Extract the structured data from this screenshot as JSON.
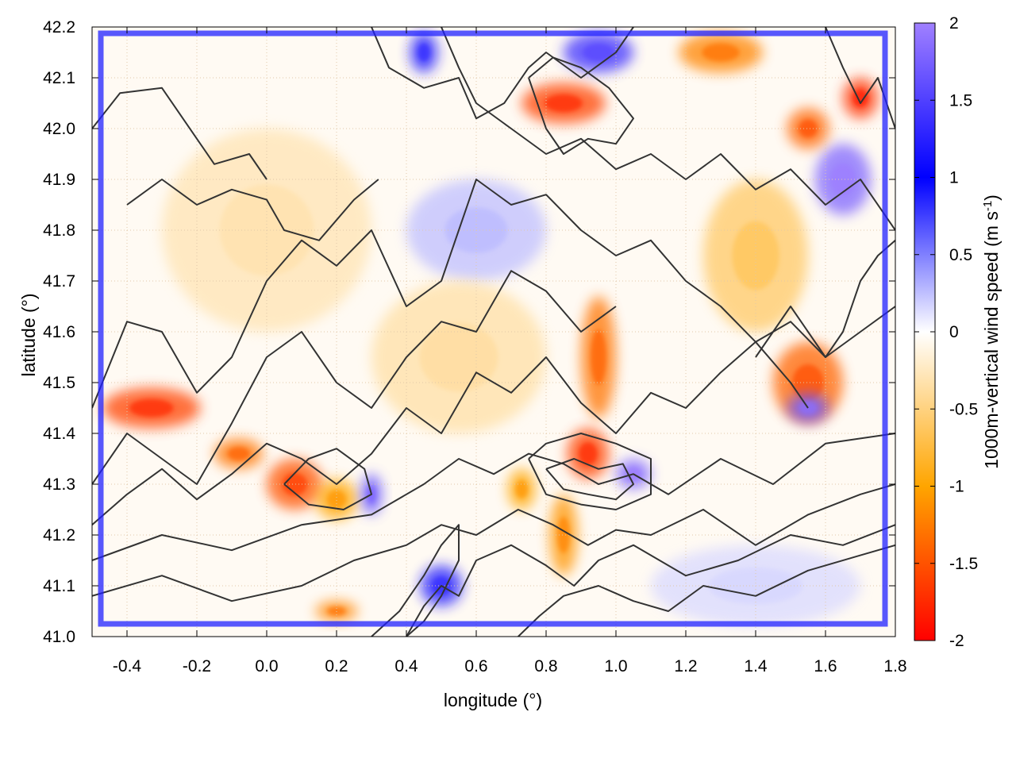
{
  "chart_data": {
    "type": "heatmap",
    "xlabel": "longitude (°)",
    "ylabel": "latitude (°)",
    "colorbar_label": "1000m-vertical wind speed (m s",
    "colorbar_label_sup": "-1",
    "colorbar_label_end": ")",
    "xlim": [
      -0.5,
      1.8
    ],
    "ylim": [
      41.0,
      42.2
    ],
    "clim": [
      -2,
      2
    ],
    "x_ticks": [
      -0.4,
      -0.2,
      0.0,
      0.2,
      0.4,
      0.6,
      0.8,
      1.0,
      1.2,
      1.4,
      1.6,
      1.8
    ],
    "x_tick_labels": [
      "-0.4",
      "-0.2",
      "0.0",
      "0.2",
      "0.4",
      "0.6",
      "0.8",
      "1.0",
      "1.2",
      "1.4",
      "1.6",
      "1.8"
    ],
    "y_ticks": [
      41.0,
      41.1,
      41.2,
      41.3,
      41.4,
      41.5,
      41.6,
      41.7,
      41.8,
      41.9,
      42.0,
      42.1,
      42.2
    ],
    "y_tick_labels": [
      "41.0",
      "41.1",
      "41.2",
      "41.3",
      "41.4",
      "41.5",
      "41.6",
      "41.7",
      "41.8",
      "41.9",
      "42.0",
      "42.1",
      "42.2"
    ],
    "c_ticks": [
      -2,
      -1.5,
      -1,
      -0.5,
      0,
      0.5,
      1,
      1.5,
      2
    ],
    "c_tick_labels": [
      "-2",
      "-1.5",
      "-1",
      "-0.5",
      "0",
      "0.5",
      "1",
      "1.5",
      "2"
    ],
    "colormap": [
      {
        "v": -2,
        "color": "#ff0000"
      },
      {
        "v": -1,
        "color": "#ffa500"
      },
      {
        "v": 0,
        "color": "#ffffff"
      },
      {
        "v": 1,
        "color": "#0000ff"
      },
      {
        "v": 2,
        "color": "#a080ff"
      }
    ],
    "grid": true,
    "features": [
      {
        "lon": -0.33,
        "lat": 41.45,
        "w": -1.6,
        "rx": 0.14,
        "ry": 0.04
      },
      {
        "lon": -0.08,
        "lat": 41.36,
        "w": -1.3,
        "rx": 0.07,
        "ry": 0.03
      },
      {
        "lon": 0.08,
        "lat": 41.3,
        "w": -1.5,
        "rx": 0.08,
        "ry": 0.05
      },
      {
        "lon": 0.2,
        "lat": 41.27,
        "w": -1.0,
        "rx": 0.06,
        "ry": 0.04
      },
      {
        "lon": 0.3,
        "lat": 41.28,
        "w": 1.6,
        "rx": 0.03,
        "ry": 0.04
      },
      {
        "lon": 0.95,
        "lat": 41.55,
        "w": -1.3,
        "rx": 0.05,
        "ry": 0.12
      },
      {
        "lon": 0.92,
        "lat": 41.36,
        "w": -1.6,
        "rx": 0.06,
        "ry": 0.05
      },
      {
        "lon": 1.05,
        "lat": 41.32,
        "w": 1.8,
        "rx": 0.05,
        "ry": 0.03
      },
      {
        "lon": 0.85,
        "lat": 41.2,
        "w": -1.1,
        "rx": 0.04,
        "ry": 0.08
      },
      {
        "lon": 0.73,
        "lat": 41.29,
        "w": -1.0,
        "rx": 0.04,
        "ry": 0.04
      },
      {
        "lon": 1.55,
        "lat": 41.5,
        "w": -1.4,
        "rx": 0.1,
        "ry": 0.08
      },
      {
        "lon": 1.55,
        "lat": 41.45,
        "w": 1.7,
        "rx": 0.06,
        "ry": 0.03
      },
      {
        "lon": 1.4,
        "lat": 41.75,
        "w": -0.6,
        "rx": 0.15,
        "ry": 0.15
      },
      {
        "lon": 1.65,
        "lat": 41.9,
        "w": 1.8,
        "rx": 0.08,
        "ry": 0.07
      },
      {
        "lon": 1.55,
        "lat": 42.0,
        "w": -1.4,
        "rx": 0.06,
        "ry": 0.04
      },
      {
        "lon": 1.7,
        "lat": 42.06,
        "w": -1.7,
        "rx": 0.05,
        "ry": 0.04
      },
      {
        "lon": 0.85,
        "lat": 42.05,
        "w": -1.6,
        "rx": 0.12,
        "ry": 0.04
      },
      {
        "lon": 0.95,
        "lat": 42.15,
        "w": 1.4,
        "rx": 0.1,
        "ry": 0.04
      },
      {
        "lon": 1.3,
        "lat": 42.15,
        "w": -1.2,
        "rx": 0.12,
        "ry": 0.04
      },
      {
        "lon": 0.45,
        "lat": 42.15,
        "w": 1.2,
        "rx": 0.04,
        "ry": 0.04
      },
      {
        "lon": 0.5,
        "lat": 41.1,
        "w": 1.2,
        "rx": 0.06,
        "ry": 0.04
      },
      {
        "lon": 0.2,
        "lat": 41.05,
        "w": -1.2,
        "rx": 0.06,
        "ry": 0.02
      },
      {
        "lon": 0.0,
        "lat": 41.8,
        "w": -0.3,
        "rx": 0.3,
        "ry": 0.2
      },
      {
        "lon": 0.6,
        "lat": 41.8,
        "w": 0.25,
        "rx": 0.2,
        "ry": 0.1
      },
      {
        "lon": 1.4,
        "lat": 41.1,
        "w": 0.15,
        "rx": 0.3,
        "ry": 0.08
      },
      {
        "lon": 0.55,
        "lat": 41.55,
        "w": -0.35,
        "rx": 0.25,
        "ry": 0.15
      }
    ],
    "contours": [
      {
        "lon": [
          -0.5,
          -0.42,
          -0.3,
          -0.2,
          -0.15,
          -0.05,
          0.0
        ],
        "lat": [
          42.0,
          42.07,
          42.08,
          41.98,
          41.93,
          41.95,
          41.9
        ]
      },
      {
        "lon": [
          -0.4,
          -0.3,
          -0.2,
          -0.1,
          0.0,
          0.05,
          0.15,
          0.25,
          0.32
        ],
        "lat": [
          41.85,
          41.9,
          41.85,
          41.88,
          41.86,
          41.8,
          41.78,
          41.86,
          41.9
        ]
      },
      {
        "lon": [
          -0.5,
          -0.4,
          -0.3,
          -0.2,
          -0.1,
          0.0,
          0.1,
          0.2,
          0.3,
          0.4,
          0.5,
          0.6,
          0.7,
          0.8,
          0.9,
          1.0,
          1.1,
          1.2,
          1.3,
          1.4,
          1.5,
          1.55
        ],
        "lat": [
          41.45,
          41.62,
          41.6,
          41.48,
          41.55,
          41.7,
          41.78,
          41.73,
          41.8,
          41.65,
          41.7,
          41.9,
          41.85,
          41.87,
          41.8,
          41.75,
          41.78,
          41.7,
          41.65,
          41.58,
          41.5,
          41.45
        ]
      },
      {
        "lon": [
          -0.5,
          -0.4,
          -0.3,
          -0.2,
          -0.1,
          0.0,
          0.1,
          0.2,
          0.3,
          0.4,
          0.5,
          0.6,
          0.7,
          0.8,
          0.9,
          1.0
        ],
        "lat": [
          41.3,
          41.4,
          41.35,
          41.3,
          41.42,
          41.55,
          41.6,
          41.5,
          41.45,
          41.55,
          41.62,
          41.6,
          41.72,
          41.68,
          41.6,
          41.65
        ]
      },
      {
        "lon": [
          -0.5,
          -0.4,
          -0.3,
          -0.2,
          -0.1,
          0.0,
          0.1,
          0.2,
          0.3,
          0.4,
          0.5,
          0.6,
          0.7,
          0.8,
          0.9,
          1.0,
          1.1,
          1.2,
          1.3,
          1.4,
          1.5,
          1.6,
          1.7,
          1.8
        ],
        "lat": [
          41.22,
          41.28,
          41.33,
          41.27,
          41.32,
          41.38,
          41.35,
          41.3,
          41.36,
          41.45,
          41.4,
          41.52,
          41.48,
          41.55,
          41.46,
          41.4,
          41.48,
          41.45,
          41.52,
          41.58,
          41.62,
          41.55,
          41.6,
          41.65
        ]
      },
      {
        "lon": [
          -0.5,
          -0.3,
          -0.1,
          0.1,
          0.3,
          0.45,
          0.55,
          0.65,
          0.75,
          0.85,
          0.95,
          1.05,
          1.15,
          1.3,
          1.45,
          1.6,
          1.8
        ],
        "lat": [
          41.15,
          41.2,
          41.17,
          41.22,
          41.24,
          41.3,
          41.35,
          41.32,
          41.36,
          41.34,
          41.3,
          41.32,
          41.28,
          41.35,
          41.3,
          41.38,
          41.4
        ]
      },
      {
        "lon": [
          -0.5,
          -0.3,
          -0.1,
          0.1,
          0.25,
          0.4,
          0.5,
          0.6,
          0.72,
          0.82,
          0.92,
          1.0,
          1.1,
          1.25,
          1.4,
          1.55,
          1.7,
          1.8
        ],
        "lat": [
          41.08,
          41.12,
          41.07,
          41.1,
          41.15,
          41.18,
          41.22,
          41.2,
          41.25,
          41.22,
          41.18,
          41.21,
          41.2,
          41.25,
          41.18,
          41.24,
          41.28,
          41.3
        ]
      },
      {
        "lon": [
          0.4,
          0.45,
          0.5,
          0.55,
          0.6,
          0.7,
          0.8,
          0.88,
          0.95,
          1.05,
          1.2,
          1.35,
          1.5,
          1.65,
          1.8
        ],
        "lat": [
          41.0,
          41.06,
          41.1,
          41.08,
          41.15,
          41.18,
          41.14,
          41.1,
          41.15,
          41.18,
          41.12,
          41.15,
          41.2,
          41.18,
          41.22
        ]
      },
      {
        "lon": [
          0.72,
          0.78,
          0.85,
          0.95,
          1.05,
          1.15,
          1.25,
          1.4,
          1.55,
          1.7,
          1.8
        ],
        "lat": [
          41.0,
          41.04,
          41.08,
          41.1,
          41.07,
          41.05,
          41.1,
          41.08,
          41.13,
          41.16,
          41.18
        ]
      },
      {
        "lon": [
          0.5,
          0.55,
          0.6,
          0.7,
          0.8,
          0.9,
          1.0,
          1.1,
          1.2,
          1.3,
          1.4,
          1.5,
          1.6,
          1.7,
          1.8
        ],
        "lat": [
          42.2,
          42.12,
          42.05,
          42.0,
          41.95,
          41.98,
          41.92,
          41.95,
          41.9,
          41.95,
          41.88,
          41.92,
          41.85,
          41.9,
          41.8
        ]
      },
      {
        "lon": [
          0.3,
          0.35,
          0.45,
          0.55,
          0.6,
          0.68,
          0.75,
          0.8,
          0.9,
          1.0,
          1.05
        ],
        "lat": [
          42.2,
          42.12,
          42.08,
          42.1,
          42.02,
          42.05,
          42.12,
          42.15,
          42.1,
          42.15,
          42.2
        ]
      },
      {
        "lon": [
          0.75,
          0.82,
          0.9,
          0.98,
          1.05,
          1.0,
          0.92,
          0.85,
          0.8,
          0.75
        ],
        "lat": [
          42.1,
          42.14,
          42.12,
          42.08,
          42.02,
          41.97,
          41.98,
          41.95,
          42.0,
          42.1
        ]
      },
      {
        "lon": [
          0.75,
          0.8,
          0.9,
          1.0,
          1.1,
          1.1,
          1.0,
          0.9,
          0.8,
          0.75
        ],
        "lat": [
          41.35,
          41.38,
          41.4,
          41.38,
          41.35,
          41.28,
          41.25,
          41.26,
          41.28,
          41.35
        ]
      },
      {
        "lon": [
          0.8,
          0.88,
          0.95,
          1.02,
          1.05,
          1.0,
          0.92,
          0.85,
          0.8
        ],
        "lat": [
          41.33,
          41.35,
          41.33,
          41.34,
          41.3,
          41.27,
          41.28,
          41.29,
          41.33
        ]
      },
      {
        "lon": [
          1.4,
          1.45,
          1.5,
          1.55,
          1.6,
          1.65,
          1.7,
          1.75,
          1.8
        ],
        "lat": [
          41.55,
          41.6,
          41.65,
          41.6,
          41.55,
          41.6,
          41.7,
          41.75,
          41.78
        ]
      },
      {
        "lon": [
          1.6,
          1.65,
          1.7,
          1.75,
          1.8
        ],
        "lat": [
          42.2,
          42.12,
          42.05,
          42.1,
          42.0
        ]
      },
      {
        "lon": [
          0.05,
          0.12,
          0.2,
          0.28,
          0.3,
          0.22,
          0.12,
          0.05
        ],
        "lat": [
          41.3,
          41.35,
          41.37,
          41.33,
          41.28,
          41.25,
          41.26,
          41.3
        ]
      },
      {
        "lon": [
          0.3,
          0.38,
          0.45,
          0.5,
          0.55,
          0.55,
          0.5,
          0.45,
          0.4
        ],
        "lat": [
          41.0,
          41.05,
          41.12,
          41.18,
          41.22,
          41.15,
          41.08,
          41.03,
          41.0
        ]
      }
    ]
  }
}
